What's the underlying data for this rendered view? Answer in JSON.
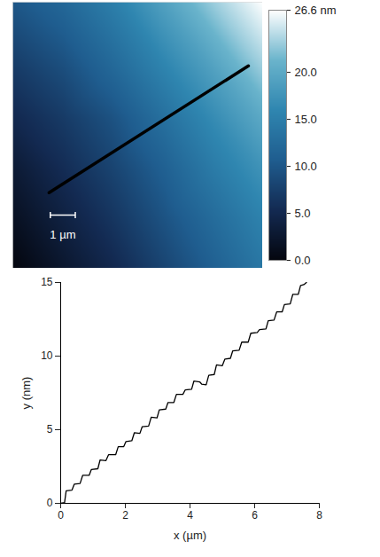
{
  "chart_data": [
    {
      "type": "heatmap",
      "x": [
        0,
        2,
        4,
        6,
        8,
        10
      ],
      "y": [
        0,
        2,
        4,
        6,
        8,
        10.7
      ],
      "cells": [
        [
          0,
          2.5,
          5,
          8,
          11,
          14
        ],
        [
          1.5,
          4,
          6.5,
          9.5,
          12.5,
          15.5
        ],
        [
          3,
          5.5,
          8,
          11,
          14.5,
          17.5
        ],
        [
          5,
          7,
          9.5,
          13,
          16.5,
          20
        ],
        [
          7,
          9,
          12,
          15.5,
          19,
          23
        ],
        [
          10,
          12,
          15,
          19,
          23,
          26.6
        ]
      ],
      "xlim": [
        0,
        10
      ],
      "ylim": [
        0,
        10.7
      ],
      "tick_labels": false,
      "colorbar": {
        "range": [
          0,
          26.6
        ],
        "ticks": [
          {
            "value": 0,
            "label": "0.0"
          },
          {
            "value": 5,
            "label": "5.0"
          },
          {
            "value": 10,
            "label": "10.0"
          },
          {
            "value": 15,
            "label": "15.0"
          },
          {
            "value": 20,
            "label": "20.0"
          },
          {
            "value": 26.6,
            "label": "26.6 nm"
          }
        ]
      },
      "scale_bar": {
        "length": 1,
        "label": "1 µm"
      },
      "profile_line": {
        "x": [
          1.45,
          9.43
        ],
        "y": [
          3.04,
          8.14
        ]
      }
    },
    {
      "type": "line",
      "xlabel": "x (µm)",
      "ylabel": "y (nm)",
      "x": [
        0,
        0.12,
        0.17,
        0.35,
        0.42,
        0.6,
        0.68,
        0.88,
        0.95,
        1.15,
        1.22,
        1.4,
        1.48,
        1.7,
        1.78,
        1.95,
        2.02,
        2.2,
        2.28,
        2.45,
        2.52,
        2.72,
        2.8,
        2.98,
        3.05,
        3.25,
        3.32,
        3.5,
        3.58,
        3.78,
        3.85,
        4.05,
        4.12,
        4.3,
        4.36,
        4.5,
        4.58,
        4.75,
        4.82,
        5.0,
        5.08,
        5.25,
        5.32,
        5.52,
        5.6,
        5.8,
        5.88,
        6.08,
        6.15,
        6.35,
        6.42,
        6.6,
        6.68,
        6.85,
        6.92,
        7.1,
        7.18,
        7.35,
        7.42,
        7.52,
        7.6
      ],
      "values": [
        0,
        0.05,
        0.85,
        0.9,
        1.3,
        1.35,
        1.9,
        1.9,
        2.3,
        2.35,
        2.95,
        2.9,
        3.3,
        3.3,
        3.85,
        3.85,
        4.2,
        4.25,
        4.8,
        4.75,
        5.2,
        5.25,
        5.85,
        5.8,
        6.35,
        6.4,
        6.85,
        6.85,
        7.4,
        7.4,
        7.7,
        7.75,
        8.3,
        8.25,
        8.1,
        8.05,
        8.7,
        8.75,
        9.4,
        9.35,
        9.8,
        9.85,
        10.35,
        10.4,
        10.95,
        10.95,
        11.55,
        11.6,
        11.8,
        11.85,
        12.4,
        12.45,
        13.0,
        13.0,
        13.5,
        13.55,
        14.2,
        14.2,
        14.8,
        14.85,
        15.0
      ],
      "xlim": [
        0,
        8
      ],
      "ylim": [
        0,
        15
      ],
      "xticks": [
        0,
        2,
        4,
        6,
        8
      ],
      "yticks": [
        0,
        5,
        10,
        15
      ],
      "color": "#000000"
    }
  ]
}
